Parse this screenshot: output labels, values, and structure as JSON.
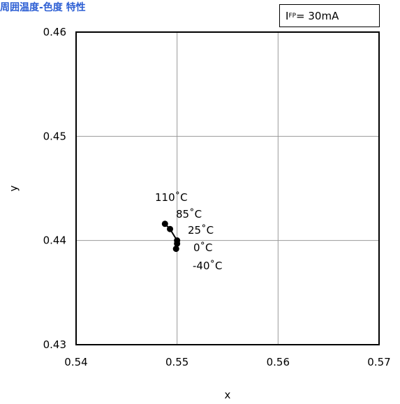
{
  "title": "周囲温度-色度 特性",
  "condition": {
    "symbol": "I",
    "subscript": "FP",
    "rest": "= 30mA"
  },
  "chart_data": {
    "type": "scatter",
    "title": "周囲温度-色度 特性",
    "xlabel": "x",
    "ylabel": "y",
    "xlim": [
      0.54,
      0.57
    ],
    "ylim": [
      0.43,
      0.46
    ],
    "x_ticks": [
      "0.54",
      "0.55",
      "0.56",
      "0.57"
    ],
    "y_ticks": [
      "0.43",
      "0.44",
      "0.45",
      "0.46"
    ],
    "grid": true,
    "series": [
      {
        "points": [
          {
            "label": "110˚C",
            "x": 0.5488,
            "y": 0.4416
          },
          {
            "label": "85˚C",
            "x": 0.5493,
            "y": 0.4411
          },
          {
            "label": "25˚C",
            "x": 0.55,
            "y": 0.44
          },
          {
            "label": "0˚C",
            "x": 0.55,
            "y": 0.4397
          },
          {
            "label": "-40˚C",
            "x": 0.5499,
            "y": 0.4392
          }
        ]
      }
    ]
  }
}
